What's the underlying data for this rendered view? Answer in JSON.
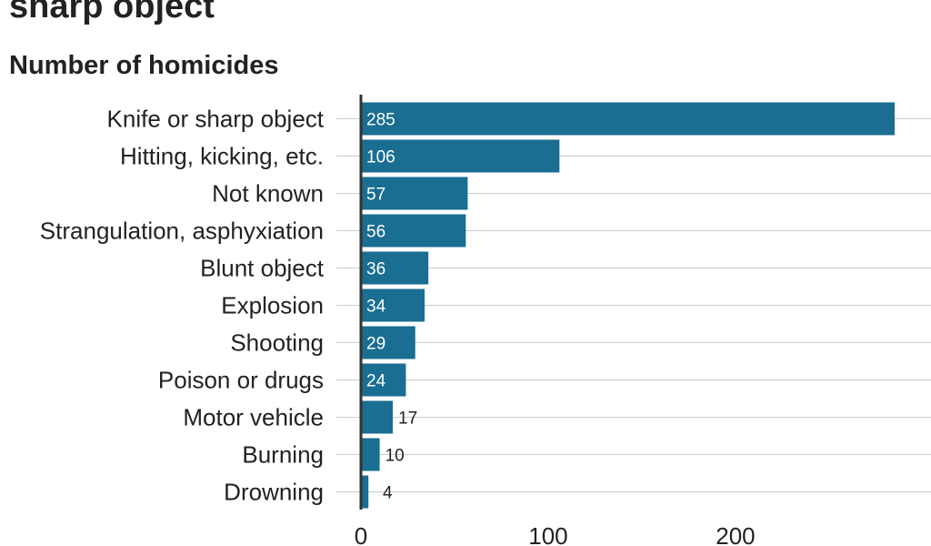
{
  "chart_data": {
    "type": "bar",
    "orientation": "horizontal",
    "title": "sharp object",
    "subtitle": "Number of homicides",
    "categories": [
      "Knife or sharp object",
      "Hitting, kicking, etc.",
      "Not known",
      "Strangulation, asphyxiation",
      "Blunt object",
      "Explosion",
      "Shooting",
      "Poison or drugs",
      "Motor vehicle",
      "Burning",
      "Drowning"
    ],
    "values": [
      285,
      106,
      57,
      56,
      36,
      34,
      29,
      24,
      17,
      10,
      4
    ],
    "xlim": [
      0,
      285
    ],
    "x_ticks": [
      0,
      100,
      200
    ],
    "grid": "horizontal",
    "bar_color": "#1a6e91",
    "axis_color": "#333333",
    "grid_color": "#cccccc"
  }
}
